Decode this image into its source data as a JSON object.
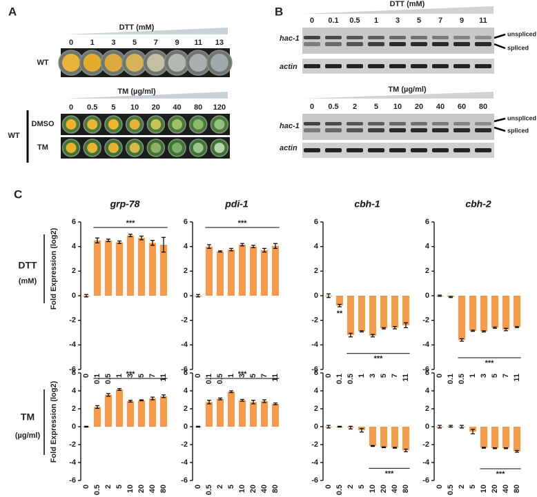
{
  "panel_a": {
    "label": "A",
    "dtt": {
      "title": "DTT (mM)",
      "concentrations": [
        0,
        1,
        3,
        5,
        7,
        9,
        11,
        13
      ],
      "row_labels": [
        "WT"
      ]
    },
    "tm": {
      "title": "TM (µg/ml)",
      "concentrations": [
        0,
        0.5,
        5,
        10,
        20,
        40,
        80,
        120
      ],
      "row_labels": [
        "DMSO",
        "TM"
      ],
      "group_label": "WT"
    }
  },
  "panel_b": {
    "label": "B",
    "dtt": {
      "title": "DTT (mM)",
      "concentrations": [
        0,
        0.1,
        0.5,
        1,
        3,
        5,
        7,
        9,
        11
      ],
      "gene_labels": [
        "hac-1",
        "actin"
      ],
      "band_labels": [
        "unspliced",
        "spliced"
      ]
    },
    "tm": {
      "title": "TM (µg/ml)",
      "concentrations": [
        0,
        0.5,
        2,
        5,
        10,
        20,
        40,
        60,
        80
      ],
      "gene_labels": [
        "hac-1",
        "actin"
      ],
      "band_labels": [
        "unspliced",
        "spliced"
      ]
    }
  },
  "panel_c": {
    "label": "C",
    "rows": [
      {
        "treatment": "DTT",
        "unit": "(mM)",
        "y_label": "Fold Expression (log2)"
      },
      {
        "treatment": "TM",
        "unit": "(µg/ml)",
        "y_label": "Fold Expression (log2)"
      }
    ]
  },
  "chart_data": [
    {
      "type": "bar",
      "title": "grp-78",
      "categories": [
        "0",
        "0.1",
        "0.5",
        "1",
        "3",
        "5",
        "7",
        "11"
      ],
      "values": [
        0,
        4.5,
        4.5,
        4.35,
        4.9,
        4.7,
        4.3,
        4.15
      ],
      "errors": [
        0.1,
        0.2,
        0.1,
        0.1,
        0.1,
        0.15,
        0.2,
        0.6
      ],
      "color": "#f39c4f",
      "ylim": [
        -6,
        6
      ],
      "yticks": [
        -6,
        -4,
        -2,
        0,
        2,
        4,
        6
      ],
      "annotations": [
        {
          "text": "***",
          "from": "0.1",
          "to": "11",
          "position": "above"
        }
      ]
    },
    {
      "type": "bar",
      "title": "pdi-1",
      "categories": [
        "0",
        "0.1",
        "0.5",
        "1",
        "3",
        "5",
        "7",
        "11"
      ],
      "values": [
        0,
        4.0,
        3.6,
        3.75,
        4.15,
        4.0,
        3.7,
        4.05
      ],
      "errors": [
        0.1,
        0.15,
        0.05,
        0.1,
        0.1,
        0.1,
        0.15,
        0.2
      ],
      "color": "#f39c4f",
      "ylim": [
        -6,
        6
      ],
      "yticks": [
        -6,
        -4,
        -2,
        0,
        2,
        4,
        6
      ],
      "annotations": [
        {
          "text": "***",
          "from": "0.1",
          "to": "11",
          "position": "above"
        }
      ]
    },
    {
      "type": "bar",
      "title": "cbh-1",
      "categories": [
        "0",
        "0.1",
        "0.5",
        "1",
        "3",
        "5",
        "7",
        "11"
      ],
      "values": [
        0,
        -0.8,
        -3.2,
        -2.9,
        -3.25,
        -2.65,
        -2.6,
        -2.4
      ],
      "errors": [
        0.15,
        0.1,
        0.15,
        0.05,
        0.1,
        0.05,
        0.1,
        0.2
      ],
      "color": "#f39c4f",
      "ylim": [
        -6,
        6
      ],
      "yticks": [
        -6,
        -4,
        -2,
        0,
        2,
        4,
        6
      ],
      "annotations": [
        {
          "text": "**",
          "from": "0.1",
          "to": "0.1",
          "position": "below"
        },
        {
          "text": "***",
          "from": "0.5",
          "to": "11",
          "position": "below"
        }
      ]
    },
    {
      "type": "bar",
      "title": "cbh-2",
      "categories": [
        "0",
        "0.1",
        "0.5",
        "1",
        "3",
        "5",
        "7",
        "11"
      ],
      "values": [
        0,
        -0.1,
        -3.6,
        -2.85,
        -2.9,
        -2.6,
        -2.75,
        -2.55
      ],
      "errors": [
        0.05,
        0.05,
        0.1,
        0.05,
        0.05,
        0.05,
        0.1,
        0.05
      ],
      "color": "#f39c4f",
      "ylim": [
        -6,
        6
      ],
      "yticks": [
        -6,
        -4,
        -2,
        0,
        2,
        4,
        6
      ],
      "annotations": [
        {
          "text": "***",
          "from": "0.5",
          "to": "11",
          "position": "below"
        }
      ]
    },
    {
      "type": "bar",
      "title": "grp-78",
      "categories": [
        "0",
        "0.5",
        "2",
        "5",
        "10",
        "20",
        "40",
        "80"
      ],
      "values": [
        0,
        2.2,
        3.55,
        4.15,
        2.85,
        2.95,
        3.15,
        3.4
      ],
      "errors": [
        0.05,
        0.15,
        0.15,
        0.1,
        0.1,
        0.05,
        0.15,
        0.15
      ],
      "color": "#f39c4f",
      "ylim": [
        -6,
        6
      ],
      "yticks": [
        -6,
        -4,
        -2,
        0,
        2,
        4,
        6
      ],
      "annotations": [
        {
          "text": "***",
          "from": "0.5",
          "to": "80",
          "position": "above"
        }
      ]
    },
    {
      "type": "bar",
      "title": "pdi-1",
      "categories": [
        "0",
        "0.5",
        "2",
        "5",
        "10",
        "20",
        "40",
        "80"
      ],
      "values": [
        0,
        2.75,
        3.1,
        3.9,
        2.95,
        2.75,
        2.85,
        2.55
      ],
      "errors": [
        0.05,
        0.2,
        0.1,
        0.1,
        0.1,
        0.2,
        0.15,
        0.1
      ],
      "color": "#f39c4f",
      "ylim": [
        -6,
        6
      ],
      "yticks": [
        -6,
        -4,
        -2,
        0,
        2,
        4,
        6
      ],
      "annotations": [
        {
          "text": "***",
          "from": "0.5",
          "to": "80",
          "position": "above"
        }
      ]
    },
    {
      "type": "bar",
      "title": "cbh-1",
      "categories": [
        "0",
        "0.5",
        "2",
        "5",
        "10",
        "20",
        "40",
        "80"
      ],
      "values": [
        0,
        0,
        -0.1,
        -0.4,
        -2.15,
        -2.3,
        -2.35,
        -2.65
      ],
      "errors": [
        0.15,
        0.05,
        0.15,
        0.2,
        0.05,
        0.05,
        0.05,
        0.15
      ],
      "color": "#f39c4f",
      "ylim": [
        -6,
        6
      ],
      "yticks": [
        -6,
        -4,
        -2,
        0,
        2,
        4,
        6
      ],
      "annotations": [
        {
          "text": "***",
          "from": "10",
          "to": "80",
          "position": "below"
        }
      ]
    },
    {
      "type": "bar",
      "title": "cbh-2",
      "categories": [
        "0",
        "0.5",
        "2",
        "5",
        "10",
        "20",
        "40",
        "80"
      ],
      "values": [
        0,
        0.05,
        0,
        -0.55,
        -2.35,
        -2.4,
        -2.4,
        -2.75
      ],
      "errors": [
        0.15,
        0.1,
        0.15,
        0.25,
        0.05,
        0.05,
        0.05,
        0.1
      ],
      "color": "#f39c4f",
      "ylim": [
        -6,
        6
      ],
      "yticks": [
        -6,
        -4,
        -2,
        0,
        2,
        4,
        6
      ],
      "annotations": [
        {
          "text": "***",
          "from": "10",
          "to": "80",
          "position": "below"
        }
      ]
    }
  ]
}
